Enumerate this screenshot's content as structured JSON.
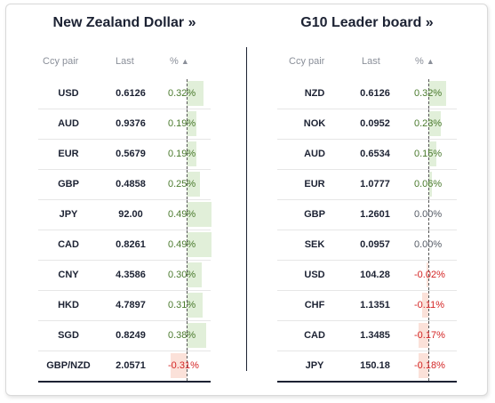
{
  "panels": [
    {
      "title": "New Zealand Dollar",
      "headers": {
        "pair": "Ccy pair",
        "last": "Last",
        "pct": "%"
      },
      "rows": [
        {
          "pair": "USD",
          "last": "0.6126",
          "pct": "0.32%",
          "value": 0.32
        },
        {
          "pair": "AUD",
          "last": "0.9376",
          "pct": "0.19%",
          "value": 0.19
        },
        {
          "pair": "EUR",
          "last": "0.5679",
          "pct": "0.19%",
          "value": 0.19
        },
        {
          "pair": "GBP",
          "last": "0.4858",
          "pct": "0.25%",
          "value": 0.25
        },
        {
          "pair": "JPY",
          "last": "92.00",
          "pct": "0.49%",
          "value": 0.49
        },
        {
          "pair": "CAD",
          "last": "0.8261",
          "pct": "0.49%",
          "value": 0.49
        },
        {
          "pair": "CNY",
          "last": "4.3586",
          "pct": "0.30%",
          "value": 0.3
        },
        {
          "pair": "HKD",
          "last": "4.7897",
          "pct": "0.31%",
          "value": 0.31
        },
        {
          "pair": "SGD",
          "last": "0.8249",
          "pct": "0.38%",
          "value": 0.38
        },
        {
          "pair": "GBP/NZD",
          "last": "2.0571",
          "pct": "-0.31%",
          "value": -0.31
        }
      ]
    },
    {
      "title": "G10 Leader board",
      "headers": {
        "pair": "Ccy pair",
        "last": "Last",
        "pct": "%"
      },
      "rows": [
        {
          "pair": "NZD",
          "last": "0.6126",
          "pct": "0.32%",
          "value": 0.32
        },
        {
          "pair": "NOK",
          "last": "0.0952",
          "pct": "0.23%",
          "value": 0.23
        },
        {
          "pair": "AUD",
          "last": "0.6534",
          "pct": "0.15%",
          "value": 0.15
        },
        {
          "pair": "EUR",
          "last": "1.0777",
          "pct": "0.06%",
          "value": 0.06
        },
        {
          "pair": "GBP",
          "last": "1.2601",
          "pct": "0.00%",
          "value": 0.0
        },
        {
          "pair": "SEK",
          "last": "0.0957",
          "pct": "0.00%",
          "value": 0.0
        },
        {
          "pair": "USD",
          "last": "104.28",
          "pct": "-0.02%",
          "value": -0.02
        },
        {
          "pair": "CHF",
          "last": "1.1351",
          "pct": "-0.11%",
          "value": -0.11
        },
        {
          "pair": "CAD",
          "last": "1.3485",
          "pct": "-0.17%",
          "value": -0.17
        },
        {
          "pair": "JPY",
          "last": "150.18",
          "pct": "-0.18%",
          "value": -0.18
        }
      ]
    }
  ],
  "link_chevron": "»",
  "sort_icon": "▲",
  "colors": {
    "positive_bar": "#e1efd9",
    "negative_bar": "#fbe1d9",
    "positive_text": "#4a7a2d",
    "negative_text": "#d42525"
  }
}
